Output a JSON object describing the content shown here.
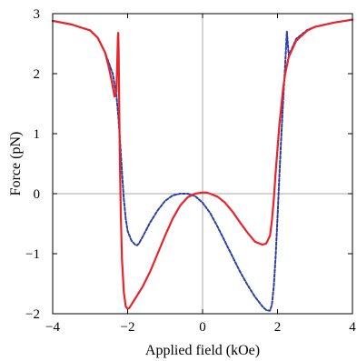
{
  "chart_data": {
    "type": "line",
    "xlabel": "Applied field (kOe)",
    "ylabel": "Force (pN)",
    "xlim": [
      -4,
      4
    ],
    "ylim": [
      -2,
      3
    ],
    "xticks": [
      -4,
      -2,
      0,
      2,
      4
    ],
    "yticks": [
      -2,
      -1,
      0,
      1,
      2,
      3
    ],
    "grid": false,
    "zero_lines": true,
    "colors": {
      "solid": "#e8242b",
      "dashed": "#2d3f9e",
      "zero": "#aaaaaa",
      "frame": "#000000"
    },
    "series": [
      {
        "style": "solid",
        "x": [
          -4,
          -3.5,
          -3,
          -2.8,
          -2.6,
          -2.5,
          -2.4,
          -2.35,
          -2.3,
          -2.28,
          -2.26,
          -2.25,
          -2.24,
          -2.22,
          -2.2,
          -2.18,
          -2.15,
          -2.1,
          -2.05,
          -2.0,
          -1.95,
          -1.9,
          -1.8,
          -1.6,
          -1.4,
          -1.2,
          -1.0,
          -0.8,
          -0.6,
          -0.4,
          -0.2,
          0.0,
          0.1,
          0.2,
          0.4,
          0.6,
          0.8,
          1.0,
          1.2,
          1.4,
          1.6,
          1.7,
          1.8,
          1.85,
          1.9,
          1.95,
          2.0,
          2.05,
          2.1,
          2.15,
          2.2,
          2.3,
          2.5,
          2.8,
          3.0,
          3.5,
          4.0
        ],
        "y": [
          2.88,
          2.82,
          2.72,
          2.6,
          2.35,
          2.1,
          1.8,
          1.62,
          1.7,
          2.1,
          2.6,
          2.68,
          2.4,
          1.2,
          0.3,
          -0.4,
          -1.1,
          -1.65,
          -1.88,
          -1.92,
          -1.9,
          -1.85,
          -1.75,
          -1.55,
          -1.3,
          -1.0,
          -0.7,
          -0.42,
          -0.2,
          -0.06,
          0.0,
          0.02,
          0.02,
          0.0,
          -0.05,
          -0.15,
          -0.3,
          -0.48,
          -0.65,
          -0.8,
          -0.85,
          -0.83,
          -0.7,
          -0.45,
          -0.1,
          0.35,
          0.75,
          1.15,
          1.45,
          1.75,
          1.98,
          2.28,
          2.55,
          2.72,
          2.78,
          2.85,
          2.9
        ]
      },
      {
        "style": "dashed",
        "x": [
          -4,
          -3.5,
          -3,
          -2.8,
          -2.6,
          -2.4,
          -2.3,
          -2.25,
          -2.2,
          -2.15,
          -2.1,
          -2.05,
          -2.0,
          -1.9,
          -1.8,
          -1.75,
          -1.7,
          -1.6,
          -1.4,
          -1.2,
          -1.0,
          -0.8,
          -0.6,
          -0.4,
          -0.2,
          0.0,
          0.2,
          0.4,
          0.6,
          0.8,
          1.0,
          1.2,
          1.4,
          1.6,
          1.7,
          1.8,
          1.85,
          1.9,
          1.95,
          2.0,
          2.05,
          2.1,
          2.15,
          2.2,
          2.25,
          2.3,
          2.5,
          2.8,
          3.0,
          3.5,
          4.0
        ],
        "y": [
          2.88,
          2.82,
          2.72,
          2.6,
          2.35,
          2.0,
          1.65,
          1.3,
          0.85,
          0.35,
          -0.1,
          -0.42,
          -0.62,
          -0.78,
          -0.85,
          -0.86,
          -0.83,
          -0.72,
          -0.48,
          -0.28,
          -0.12,
          -0.03,
          0.0,
          0.0,
          -0.04,
          -0.15,
          -0.32,
          -0.55,
          -0.8,
          -1.05,
          -1.3,
          -1.52,
          -1.72,
          -1.88,
          -1.94,
          -1.95,
          -1.85,
          -1.55,
          -1.05,
          -0.4,
          0.3,
          0.95,
          1.55,
          2.1,
          2.7,
          2.3,
          2.58,
          2.73,
          2.78,
          2.85,
          2.9
        ]
      }
    ]
  }
}
